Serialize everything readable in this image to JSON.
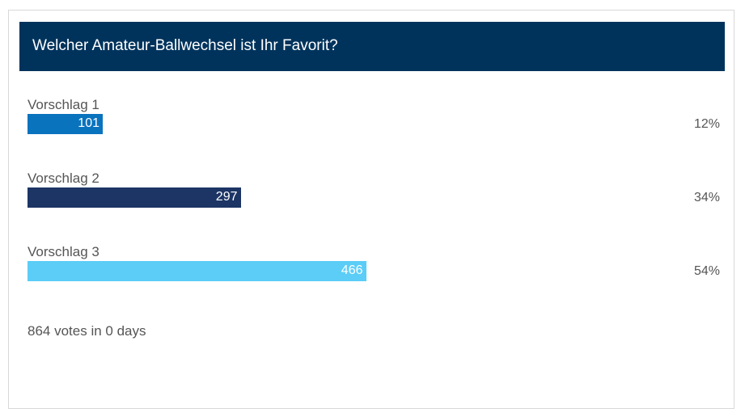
{
  "poll": {
    "title": "Welcher Amateur-Ballwechsel ist Ihr Favorit?",
    "options": [
      {
        "label": "Vorschlag 1",
        "votes": 101,
        "percent": 12,
        "percent_label": "12%",
        "color": "#0a73be"
      },
      {
        "label": "Vorschlag 2",
        "votes": 297,
        "percent": 34,
        "percent_label": "34%",
        "color": "#1c3565"
      },
      {
        "label": "Vorschlag 3",
        "votes": 466,
        "percent": 54,
        "percent_label": "54%",
        "color": "#5bcdf7"
      }
    ],
    "footer": "864 votes in 0 days"
  }
}
